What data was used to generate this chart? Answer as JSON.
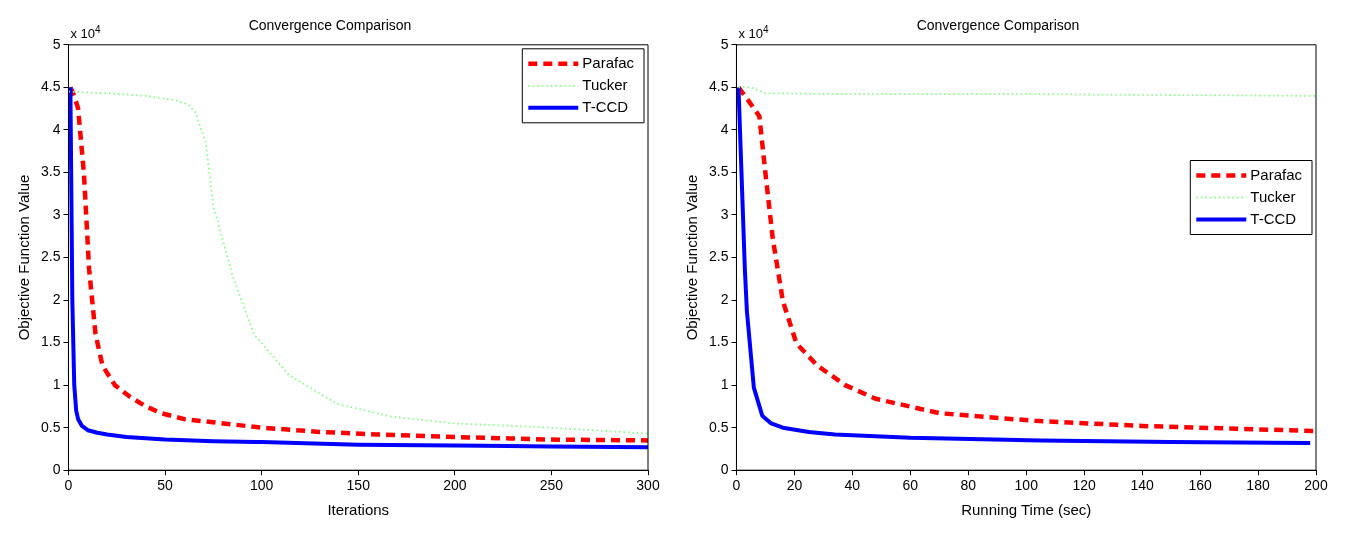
{
  "chart_data": [
    {
      "type": "line",
      "title": "Convergence Comparison",
      "xlabel": "Iterations",
      "ylabel": "Objective Function Value",
      "annotations": [
        "x 10$^{4}$"
      ],
      "xlim": [
        0,
        300
      ],
      "xticks": [
        0,
        50,
        100,
        150,
        200,
        250,
        300
      ],
      "ylim": [
        0,
        5
      ],
      "yticks": [
        0,
        0.5,
        1,
        1.5,
        2,
        2.5,
        3,
        3.5,
        4,
        4.5,
        5
      ],
      "legend": "top right",
      "grid": false,
      "series": [
        {
          "name": "Parafac",
          "color": "#ff0000",
          "line_style": "dashed",
          "x": [
            1,
            3,
            5,
            8,
            10.7,
            14,
            17.6,
            24,
            32,
            40,
            48,
            60,
            80,
            100,
            130,
            160,
            200,
            250,
            300
          ],
          "values": [
            4.5,
            4.4,
            4.25,
            3.49,
            2.36,
            1.6,
            1.23,
            1.0,
            0.86,
            0.75,
            0.67,
            0.6,
            0.55,
            0.5,
            0.45,
            0.42,
            0.39,
            0.36,
            0.35
          ]
        },
        {
          "name": "Tucker",
          "color": "#80ff80",
          "line_style": "dotted",
          "x": [
            0,
            20,
            40,
            55,
            62,
            66,
            68,
            71,
            75,
            85,
            96,
            114,
            139,
            167,
            200,
            250,
            300
          ],
          "values": [
            4.45,
            4.43,
            4.4,
            4.35,
            4.3,
            4.2,
            4.05,
            3.86,
            3.11,
            2.28,
            1.6,
            1.12,
            0.78,
            0.63,
            0.55,
            0.5,
            0.43
          ]
        },
        {
          "name": "T-CCD",
          "color": "#0000ff",
          "line_style": "solid",
          "x": [
            1,
            2,
            3,
            4,
            5,
            7,
            10,
            15,
            20,
            30,
            50,
            75,
            100,
            150,
            200,
            250,
            300
          ],
          "values": [
            4.5,
            2.0,
            1.0,
            0.7,
            0.6,
            0.52,
            0.47,
            0.44,
            0.42,
            0.39,
            0.36,
            0.34,
            0.33,
            0.3,
            0.29,
            0.28,
            0.27
          ]
        }
      ]
    },
    {
      "type": "line",
      "title": "Convergence Comparison",
      "xlabel": "Running Time (sec)",
      "ylabel": "Objective Function Value",
      "annotations": [
        "x 10$^{4}$"
      ],
      "xlim": [
        0,
        200
      ],
      "xticks": [
        0,
        20,
        40,
        60,
        80,
        100,
        120,
        140,
        160,
        180,
        200
      ],
      "ylim": [
        0,
        5
      ],
      "yticks": [
        0,
        0.5,
        1,
        1.5,
        2,
        2.5,
        3,
        3.5,
        4,
        4.5,
        5
      ],
      "legend": "right",
      "grid": false,
      "series": [
        {
          "name": "Parafac",
          "color": "#ff0000",
          "line_style": "dashed",
          "x": [
            0.7,
            4,
            7.9,
            10,
            12.5,
            16,
            20.7,
            27.9,
            37.5,
            48,
            70,
            103,
            140,
            170,
            200
          ],
          "values": [
            4.5,
            4.35,
            4.16,
            3.49,
            2.73,
            1.99,
            1.49,
            1.23,
            1.0,
            0.84,
            0.67,
            0.58,
            0.52,
            0.49,
            0.46
          ]
        },
        {
          "name": "Tucker",
          "color": "#80ff80",
          "line_style": "dotted",
          "x": [
            0.7,
            5,
            10,
            40,
            100,
            150,
            200
          ],
          "values": [
            4.5,
            4.5,
            4.43,
            4.42,
            4.42,
            4.41,
            4.4
          ]
        },
        {
          "name": "T-CCD",
          "color": "#0000ff",
          "line_style": "solid",
          "x": [
            0.7,
            2.9,
            3.6,
            6,
            8.9,
            12,
            16,
            25,
            34,
            60,
            105,
            150,
            198
          ],
          "values": [
            4.5,
            2.36,
            1.87,
            0.97,
            0.64,
            0.55,
            0.5,
            0.45,
            0.42,
            0.38,
            0.35,
            0.33,
            0.32
          ]
        }
      ]
    }
  ]
}
